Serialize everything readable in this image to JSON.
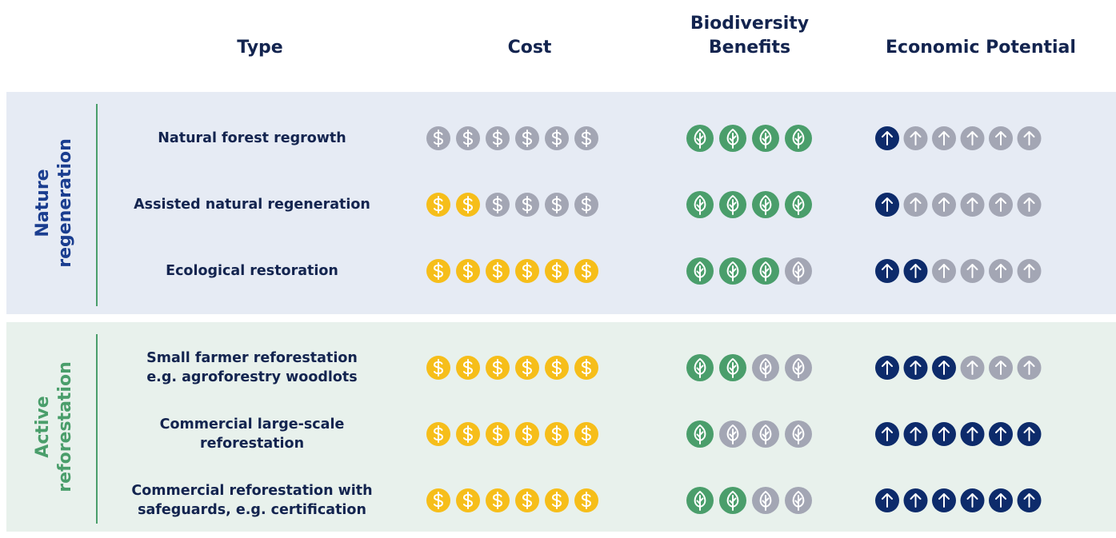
{
  "columns": [
    "Type",
    "Cost",
    "Biodiversity Benefits",
    "Economic Potential"
  ],
  "scales": {
    "cost": 6,
    "biodiversity": 4,
    "economic": 6
  },
  "groups": [
    {
      "label": [
        "Nature",
        "regeneration"
      ],
      "rows": [
        {
          "type": [
            "Natural forest regrowth"
          ],
          "cost": 0,
          "biodiversity": 4,
          "economic": 1
        },
        {
          "type": [
            "Assisted natural regeneration"
          ],
          "cost": 2,
          "biodiversity": 4,
          "economic": 1
        },
        {
          "type": [
            "Ecological restoration"
          ],
          "cost": 6,
          "biodiversity": 3,
          "economic": 2
        }
      ]
    },
    {
      "label": [
        "Active",
        "reforestation"
      ],
      "rows": [
        {
          "type": [
            "Small farmer reforestation",
            "e.g. agroforestry woodlots"
          ],
          "cost": 6,
          "biodiversity": 2,
          "economic": 3
        },
        {
          "type": [
            "Commercial large-scale",
            "reforestation"
          ],
          "cost": 6,
          "biodiversity": 1,
          "economic": 6
        },
        {
          "type": [
            "Commercial reforestation with",
            "safeguards, e.g. certification"
          ],
          "cost": 6,
          "biodiversity": 2,
          "economic": 6
        }
      ]
    }
  ]
}
